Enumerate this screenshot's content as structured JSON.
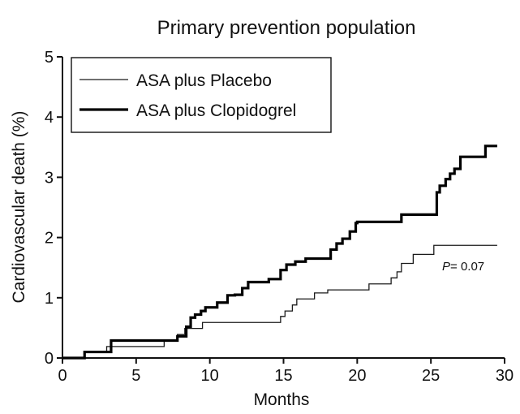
{
  "chart_data": {
    "type": "line",
    "title": "Primary prevention population",
    "xlabel": "Months",
    "ylabel": "Cardiovascular death (%)",
    "xlim": [
      0,
      30
    ],
    "ylim": [
      0,
      5
    ],
    "xticks": [
      0,
      5,
      10,
      15,
      20,
      25,
      30
    ],
    "yticks": [
      0,
      1,
      2,
      3,
      4,
      5
    ],
    "grid": false,
    "legend_position": "top-left",
    "annotation": {
      "p_label": "P",
      "p_value_text": "= 0.07"
    },
    "series": [
      {
        "name": "ASA plus Placebo",
        "line_style": "thin",
        "color": "#1a1a1a",
        "x": [
          0,
          1.5,
          3.0,
          6.9,
          7.8,
          8.3,
          9.5,
          10.3,
          14.8,
          15.1,
          15.6,
          15.9,
          16.5,
          17.1,
          17.6,
          18.0,
          19.5,
          20.8,
          21.5,
          22.3,
          22.7,
          23.0,
          23.4,
          23.8,
          25.2,
          29.5
        ],
        "y": [
          0,
          0.1,
          0.19,
          0.29,
          0.39,
          0.49,
          0.59,
          0.59,
          0.69,
          0.78,
          0.88,
          0.98,
          0.98,
          1.08,
          1.08,
          1.13,
          1.13,
          1.23,
          1.23,
          1.33,
          1.43,
          1.57,
          1.57,
          1.72,
          1.87,
          1.87
        ]
      },
      {
        "name": "ASA plus Clopidogrel",
        "line_style": "thick",
        "color": "#000000",
        "x": [
          0,
          1.5,
          3.3,
          7.0,
          7.8,
          8.4,
          8.7,
          9.0,
          9.4,
          9.7,
          10.5,
          11.2,
          11.7,
          12.2,
          12.6,
          13.2,
          14.0,
          14.8,
          15.2,
          15.8,
          16.5,
          18.2,
          18.6,
          19.0,
          19.5,
          19.9,
          20.0,
          23.0,
          25.4,
          25.6,
          26.0,
          26.3,
          26.6,
          27.0,
          28.2,
          28.7,
          29.5
        ],
        "y": [
          0,
          0.1,
          0.29,
          0.29,
          0.36,
          0.52,
          0.67,
          0.72,
          0.78,
          0.84,
          0.92,
          1.04,
          1.05,
          1.16,
          1.26,
          1.26,
          1.31,
          1.46,
          1.55,
          1.6,
          1.65,
          1.8,
          1.9,
          1.98,
          2.1,
          2.24,
          2.26,
          2.38,
          2.75,
          2.86,
          2.97,
          3.06,
          3.14,
          3.34,
          3.34,
          3.52,
          3.52
        ]
      }
    ]
  }
}
